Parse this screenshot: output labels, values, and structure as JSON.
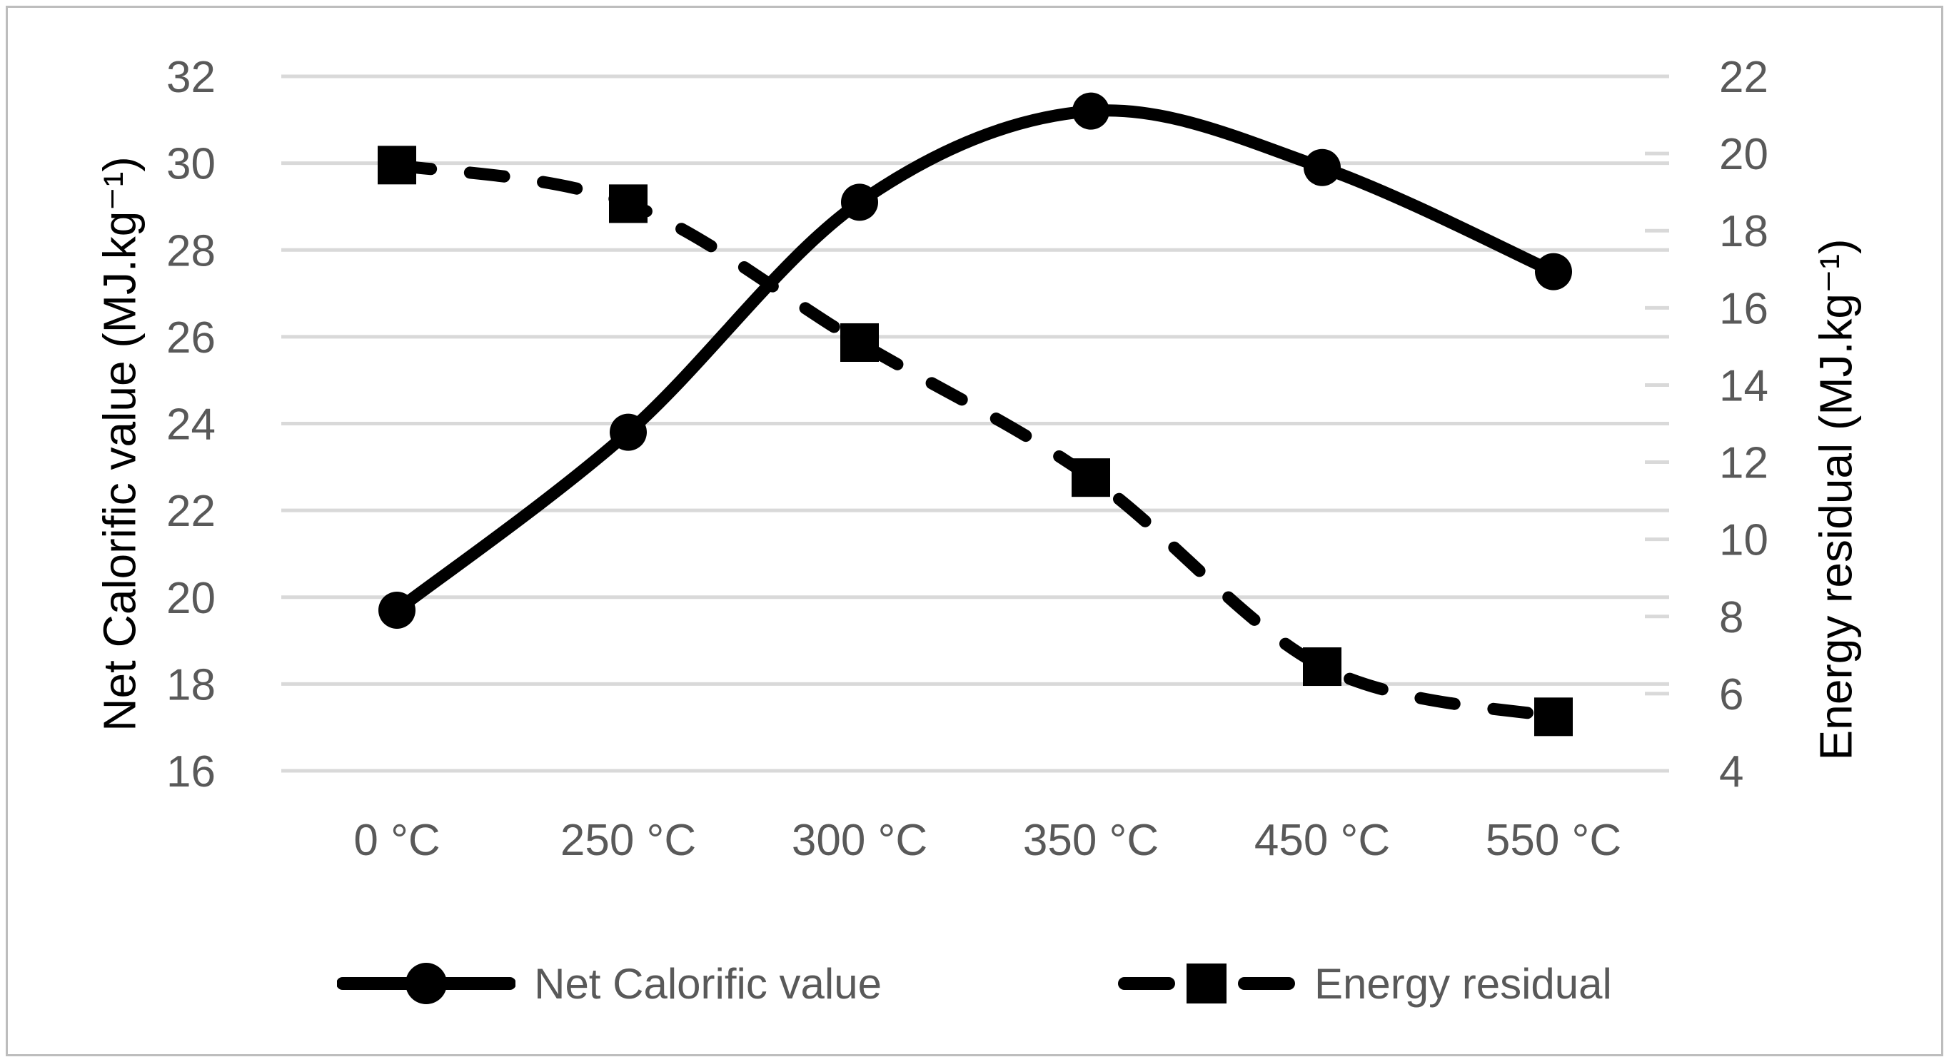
{
  "figure": {
    "background": "#ffffff",
    "border_color": "#bdbdbd"
  },
  "chart_data": {
    "type": "line",
    "categories": [
      "0 °C",
      "250 °C",
      "300 °C",
      "350 °C",
      "450 °C",
      "550 °C"
    ],
    "series": [
      {
        "name": "Net Calorific value",
        "axis": "left",
        "style": "solid",
        "marker": "circle",
        "values": [
          19.7,
          23.8,
          29.1,
          31.2,
          29.9,
          27.5
        ]
      },
      {
        "name": "Energy residual",
        "axis": "right",
        "style": "dashed",
        "marker": "square",
        "values": [
          19.7,
          18.7,
          15.1,
          11.6,
          6.7,
          5.4
        ]
      }
    ],
    "left_axis": {
      "title": "Net Calorific value (MJ.kg⁻¹)",
      "min": 16,
      "max": 32,
      "step": 2,
      "ticks": [
        32,
        30,
        28,
        26,
        24,
        22,
        20,
        18,
        16
      ]
    },
    "right_axis": {
      "title": "Energy residual (MJ.kg⁻¹)",
      "min": 4,
      "max": 22,
      "step": 2,
      "ticks": [
        22,
        20,
        18,
        16,
        14,
        12,
        10,
        8,
        6,
        4
      ]
    },
    "legend": {
      "position": "bottom",
      "items": [
        "Net Calorific value",
        "Energy residual"
      ]
    },
    "grid": true,
    "smooth_lines": true,
    "colors": {
      "series": "#000000",
      "gridline": "#d9d9d9",
      "tick_label": "#595959",
      "axis_title": "#000000",
      "legend_text": "#595959"
    }
  }
}
